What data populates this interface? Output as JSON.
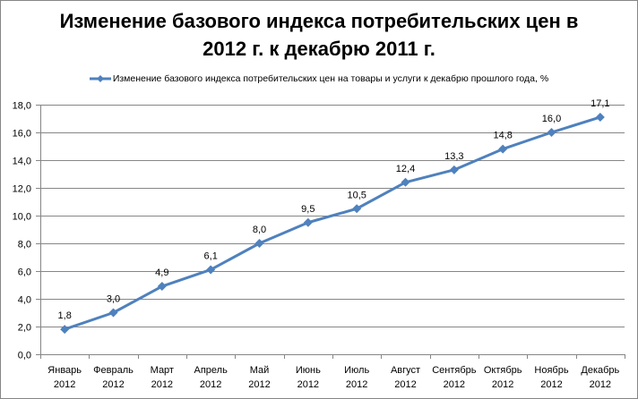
{
  "chart_data": {
    "type": "line",
    "title": "Изменение базового индекса потребительских цен в 2012 г. к декабрю 2011 г.",
    "title_lines": [
      "Изменение базового индекса потребительских цен в",
      "2012 г. к декабрю 2011 г."
    ],
    "xlabel": "",
    "ylabel": "",
    "categories": [
      [
        "Январь",
        "2012"
      ],
      [
        "Февраль",
        "2012"
      ],
      [
        "Март",
        "2012"
      ],
      [
        "Апрель",
        "2012"
      ],
      [
        "Май",
        "2012"
      ],
      [
        "Июнь",
        "2012"
      ],
      [
        "Июль",
        "2012"
      ],
      [
        "Август",
        "2012"
      ],
      [
        "Сентябрь",
        "2012"
      ],
      [
        "Октябрь",
        "2012"
      ],
      [
        "Ноябрь",
        "2012"
      ],
      [
        "Декабрь",
        "2012"
      ]
    ],
    "series": [
      {
        "name": "Изменение  базового индекса потребительских  цен  на товары и услуги к декабрю  прошлого года, %",
        "values": [
          1.8,
          3.0,
          4.9,
          6.1,
          8.0,
          9.5,
          10.5,
          12.4,
          13.3,
          14.8,
          16.0,
          17.1
        ],
        "labels": [
          "1,8",
          "3,0",
          "4,9",
          "6,1",
          "8,0",
          "9,5",
          "10,5",
          "12,4",
          "13,3",
          "14,8",
          "16,0",
          "17,1"
        ],
        "color": "#4F81BD",
        "marker": "diamond"
      }
    ],
    "ylim": [
      0,
      18
    ],
    "yticks": [
      "0,0",
      "2,0",
      "4,0",
      "6,0",
      "8,0",
      "10,0",
      "12,0",
      "14,0",
      "16,0",
      "18,0"
    ],
    "grid": true,
    "legend_position": "top"
  }
}
